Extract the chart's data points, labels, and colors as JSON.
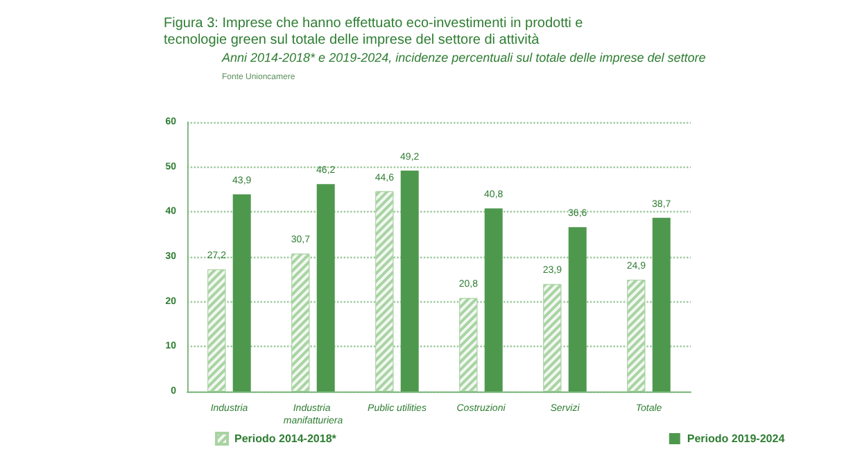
{
  "chart_data": {
    "type": "bar",
    "title": "Figura 3: Imprese che hanno effettuato eco-investimenti in prodotti e tecnologie green sul totale delle imprese del settore di attività",
    "subtitle": "Anni 2014-2018* e 2019-2024, incidenze percentuali sul totale delle imprese del settore",
    "annotations": [
      "Fonte Unioncamere"
    ],
    "categories": [
      "Industria",
      "Industria manifatturiera",
      "Public utilities",
      "Costruzioni",
      "Servizi",
      "Totale"
    ],
    "series": [
      {
        "name": "Periodo 2014-2018*",
        "color": "#a9d3a3",
        "values": [
          27.2,
          30.7,
          44.6,
          20.8,
          23.9,
          24.9
        ],
        "value_labels": [
          "27,2",
          "30,7",
          "44,6",
          "20,8",
          "23,9",
          "24,9"
        ]
      },
      {
        "name": "Periodo 2019-2024",
        "color": "#4e984e",
        "values": [
          43.9,
          46.2,
          49.2,
          40.8,
          36.6,
          38.7
        ],
        "value_labels": [
          "43,9",
          "46,2",
          "49,2",
          "40,8",
          "36,6",
          "38,7"
        ]
      }
    ],
    "ylim": [
      0,
      60
    ],
    "yticks": [
      0,
      10,
      20,
      30,
      40,
      50,
      60
    ],
    "grid": "y",
    "legend": "bottom"
  }
}
